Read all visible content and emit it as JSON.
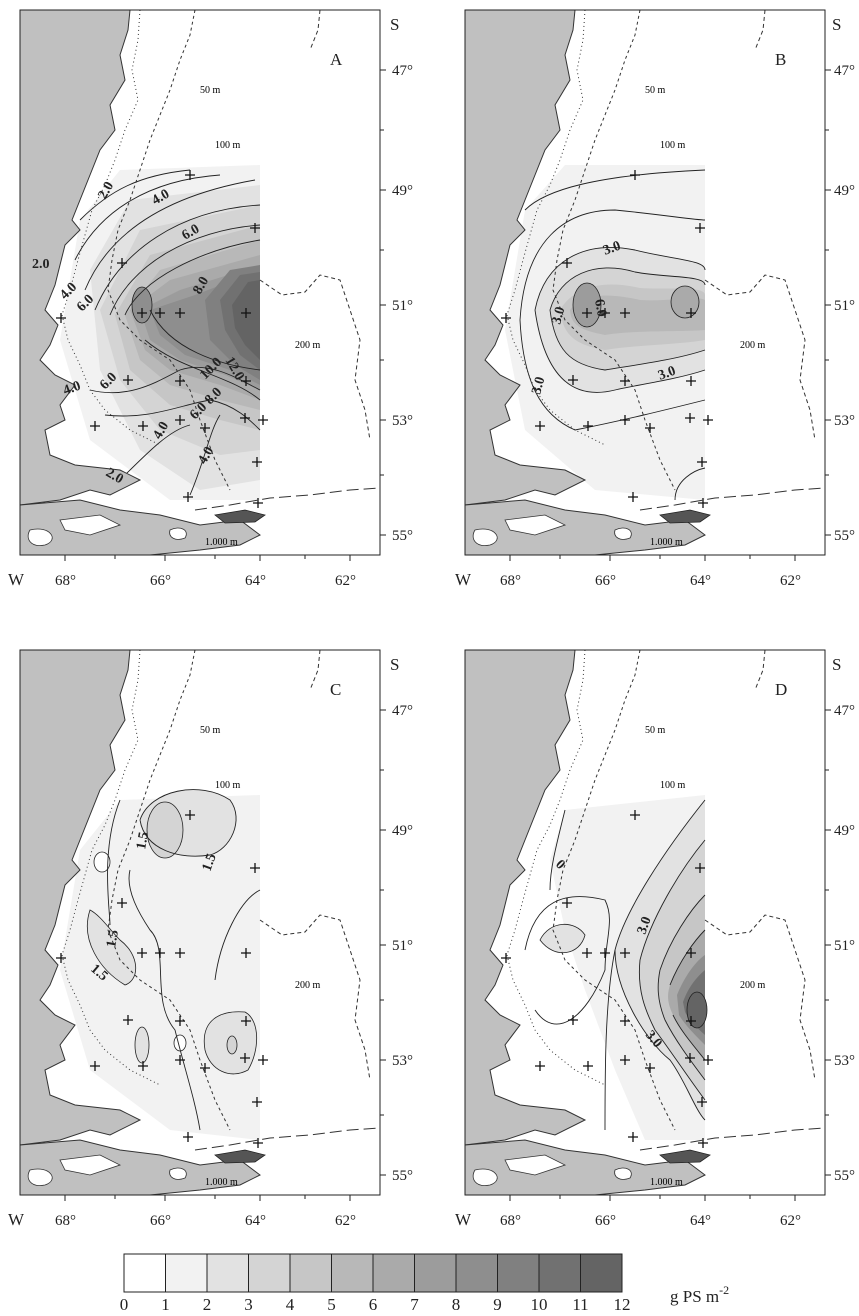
{
  "panels": [
    {
      "letter": "A",
      "contour_labels": [
        "2.0",
        "4.0",
        "6.0",
        "8.0",
        "2.0",
        "4.0",
        "6.0",
        "4.0",
        "6.0",
        "12.0",
        "10.0",
        "8.0",
        "6.0",
        "4.0",
        "2.0",
        "4.0"
      ]
    },
    {
      "letter": "B",
      "contour_labels": [
        "3.0",
        "3.0",
        "6.0",
        "3.0",
        "3.0"
      ]
    },
    {
      "letter": "C",
      "contour_labels": [
        "1.5",
        "1.5",
        "1.5",
        "1.5"
      ]
    },
    {
      "letter": "D",
      "contour_labels": [
        "0",
        "3.0",
        "3.0"
      ]
    }
  ],
  "isobaths": [
    "50 m",
    "100 m",
    "200 m",
    "1.000 m"
  ],
  "axes": {
    "hemisphere_lat": "S",
    "hemisphere_lon": "W",
    "lat_ticks": [
      "47°",
      "49°",
      "51°",
      "53°",
      "55°"
    ],
    "lon_ticks": [
      "68°",
      "66°",
      "64°",
      "62°"
    ]
  },
  "legend": {
    "tick_labels": [
      "0",
      "1",
      "2",
      "3",
      "4",
      "5",
      "6",
      "7",
      "8",
      "9",
      "10",
      "11",
      "12"
    ],
    "unit": "g PS m",
    "unit_exponent": "-2",
    "colors": [
      "#ffffff",
      "#f2f2f2",
      "#e2e2e2",
      "#d4d4d4",
      "#c6c6c6",
      "#b8b8b8",
      "#aaaaaa",
      "#9c9c9c",
      "#8e8e8e",
      "#808080",
      "#717171",
      "#646464"
    ]
  },
  "colors": {
    "land": "#c0c0c0",
    "sea": "#ffffff"
  }
}
